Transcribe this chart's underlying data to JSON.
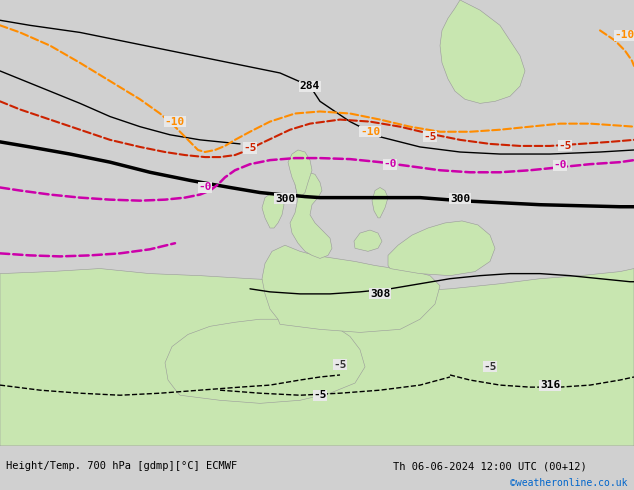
{
  "title_left": "Height/Temp. 700 hPa [gdmp][°C] ECMWF",
  "title_right": "Th 06-06-2024 12:00 UTC (00+12)",
  "copyright": "©weatheronline.co.uk",
  "background_color": "#e8e8e8",
  "land_color": "#c8e6b0",
  "sea_color": "#e8e8e8",
  "fig_width": 6.34,
  "fig_height": 4.9,
  "dpi": 100,
  "geopotential_color": "#000000",
  "geopotential_linewidth_thin": 1.0,
  "geopotential_linewidth_thick": 2.5,
  "temp_neg10_color": "#ff8c00",
  "temp_neg5_color": "#cc2200",
  "temp_0_color": "#cc00aa",
  "temp_neg5_neg_color": "#cc2200",
  "contour_label_fontsize": 8
}
